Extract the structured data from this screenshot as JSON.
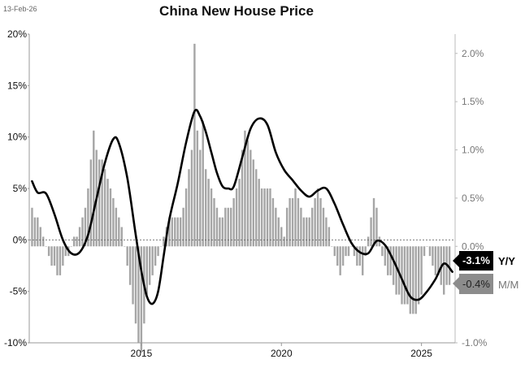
{
  "header": {
    "date": "13-Feb-26",
    "title": "China New House Price"
  },
  "chart_data": {
    "type": "bar",
    "title": "China New House Price",
    "x_range": [
      2011.0,
      2026.2
    ],
    "x_ticks": [
      2015,
      2020,
      2025
    ],
    "y_left": {
      "range": [
        -10,
        20
      ],
      "ticks": [
        -10,
        -5,
        0,
        5,
        10,
        15,
        20
      ],
      "unit": "%"
    },
    "y_right": {
      "range": [
        -1.0,
        2.2
      ],
      "ticks": [
        -1.0,
        0.0,
        0.5,
        1.0,
        1.5,
        2.0
      ],
      "unit": "%"
    },
    "grid": false,
    "series": [
      {
        "name": "Y/Y",
        "type": "line",
        "axis": "left",
        "color": "#000000",
        "points": [
          [
            2011.1,
            5.7
          ],
          [
            2011.3,
            4.6
          ],
          [
            2011.6,
            4.5
          ],
          [
            2011.9,
            2.5
          ],
          [
            2012.2,
            0.0
          ],
          [
            2012.5,
            -1.3
          ],
          [
            2012.8,
            -1.2
          ],
          [
            2013.1,
            0.5
          ],
          [
            2013.4,
            4.0
          ],
          [
            2013.7,
            7.5
          ],
          [
            2014.0,
            9.8
          ],
          [
            2014.2,
            9.4
          ],
          [
            2014.5,
            6.0
          ],
          [
            2014.8,
            0.5
          ],
          [
            2015.0,
            -3.0
          ],
          [
            2015.2,
            -5.5
          ],
          [
            2015.4,
            -6.2
          ],
          [
            2015.6,
            -5.0
          ],
          [
            2015.8,
            -1.5
          ],
          [
            2016.0,
            2.0
          ],
          [
            2016.3,
            5.5
          ],
          [
            2016.6,
            9.5
          ],
          [
            2016.9,
            12.5
          ],
          [
            2017.1,
            12.0
          ],
          [
            2017.3,
            10.5
          ],
          [
            2017.5,
            8.5
          ],
          [
            2017.7,
            6.5
          ],
          [
            2017.9,
            5.2
          ],
          [
            2018.1,
            5.0
          ],
          [
            2018.3,
            5.2
          ],
          [
            2018.6,
            8.0
          ],
          [
            2018.9,
            10.8
          ],
          [
            2019.2,
            11.8
          ],
          [
            2019.5,
            11.2
          ],
          [
            2019.8,
            8.5
          ],
          [
            2020.1,
            6.8
          ],
          [
            2020.4,
            5.8
          ],
          [
            2020.7,
            4.8
          ],
          [
            2021.0,
            4.2
          ],
          [
            2021.3,
            4.8
          ],
          [
            2021.6,
            5.0
          ],
          [
            2021.9,
            3.5
          ],
          [
            2022.2,
            1.5
          ],
          [
            2022.5,
            -0.3
          ],
          [
            2022.8,
            -1.2
          ],
          [
            2023.1,
            -1.3
          ],
          [
            2023.4,
            -0.1
          ],
          [
            2023.7,
            -0.5
          ],
          [
            2024.0,
            -2.0
          ],
          [
            2024.3,
            -3.8
          ],
          [
            2024.6,
            -5.5
          ],
          [
            2024.9,
            -5.8
          ],
          [
            2025.2,
            -5.0
          ],
          [
            2025.5,
            -3.8
          ],
          [
            2025.8,
            -2.3
          ],
          [
            2026.1,
            -3.1
          ]
        ],
        "latest_label": "-3.1%"
      },
      {
        "name": "M/M",
        "type": "bar",
        "axis": "right",
        "color": "#a6a6a6",
        "points": [
          [
            2011.1,
            0.4
          ],
          [
            2011.2,
            0.3
          ],
          [
            2011.3,
            0.3
          ],
          [
            2011.4,
            0.2
          ],
          [
            2011.5,
            0.1
          ],
          [
            2011.6,
            0.0
          ],
          [
            2011.7,
            -0.1
          ],
          [
            2011.8,
            -0.2
          ],
          [
            2011.9,
            -0.2
          ],
          [
            2012.0,
            -0.3
          ],
          [
            2012.1,
            -0.3
          ],
          [
            2012.2,
            -0.2
          ],
          [
            2012.3,
            -0.1
          ],
          [
            2012.4,
            -0.1
          ],
          [
            2012.5,
            0.0
          ],
          [
            2012.6,
            0.1
          ],
          [
            2012.7,
            0.1
          ],
          [
            2012.8,
            0.2
          ],
          [
            2012.9,
            0.3
          ],
          [
            2013.0,
            0.4
          ],
          [
            2013.1,
            0.6
          ],
          [
            2013.2,
            0.9
          ],
          [
            2013.3,
            1.2
          ],
          [
            2013.4,
            1.0
          ],
          [
            2013.5,
            0.9
          ],
          [
            2013.6,
            0.9
          ],
          [
            2013.7,
            0.8
          ],
          [
            2013.8,
            0.7
          ],
          [
            2013.9,
            0.6
          ],
          [
            2014.0,
            0.5
          ],
          [
            2014.1,
            0.4
          ],
          [
            2014.2,
            0.3
          ],
          [
            2014.3,
            0.2
          ],
          [
            2014.4,
            0.0
          ],
          [
            2014.5,
            -0.2
          ],
          [
            2014.6,
            -0.4
          ],
          [
            2014.7,
            -0.6
          ],
          [
            2014.8,
            -0.8
          ],
          [
            2014.9,
            -1.0
          ],
          [
            2015.0,
            -1.1
          ],
          [
            2015.1,
            -0.8
          ],
          [
            2015.2,
            -0.5
          ],
          [
            2015.3,
            -0.4
          ],
          [
            2015.4,
            -0.3
          ],
          [
            2015.5,
            -0.2
          ],
          [
            2015.6,
            -0.1
          ],
          [
            2015.7,
            0.0
          ],
          [
            2015.8,
            0.1
          ],
          [
            2015.9,
            0.2
          ],
          [
            2016.0,
            0.3
          ],
          [
            2016.1,
            0.3
          ],
          [
            2016.2,
            0.3
          ],
          [
            2016.3,
            0.3
          ],
          [
            2016.4,
            0.3
          ],
          [
            2016.5,
            0.4
          ],
          [
            2016.6,
            0.6
          ],
          [
            2016.7,
            0.8
          ],
          [
            2016.8,
            1.0
          ],
          [
            2016.9,
            2.1
          ],
          [
            2017.0,
            1.2
          ],
          [
            2017.1,
            1.0
          ],
          [
            2017.2,
            1.3
          ],
          [
            2017.3,
            0.8
          ],
          [
            2017.4,
            0.7
          ],
          [
            2017.5,
            0.6
          ],
          [
            2017.6,
            0.5
          ],
          [
            2017.7,
            0.4
          ],
          [
            2017.8,
            0.3
          ],
          [
            2017.9,
            0.3
          ],
          [
            2018.0,
            0.4
          ],
          [
            2018.1,
            0.4
          ],
          [
            2018.2,
            0.4
          ],
          [
            2018.3,
            0.5
          ],
          [
            2018.4,
            0.6
          ],
          [
            2018.5,
            0.7
          ],
          [
            2018.6,
            1.0
          ],
          [
            2018.7,
            1.2
          ],
          [
            2018.8,
            1.1
          ],
          [
            2018.9,
            1.0
          ],
          [
            2019.0,
            0.9
          ],
          [
            2019.1,
            0.8
          ],
          [
            2019.2,
            0.7
          ],
          [
            2019.3,
            0.6
          ],
          [
            2019.4,
            0.6
          ],
          [
            2019.5,
            0.6
          ],
          [
            2019.6,
            0.6
          ],
          [
            2019.7,
            0.5
          ],
          [
            2019.8,
            0.4
          ],
          [
            2019.9,
            0.3
          ],
          [
            2020.0,
            0.2
          ],
          [
            2020.1,
            0.1
          ],
          [
            2020.2,
            0.4
          ],
          [
            2020.3,
            0.5
          ],
          [
            2020.4,
            0.5
          ],
          [
            2020.5,
            0.6
          ],
          [
            2020.6,
            0.5
          ],
          [
            2020.7,
            0.4
          ],
          [
            2020.8,
            0.3
          ],
          [
            2020.9,
            0.3
          ],
          [
            2021.0,
            0.3
          ],
          [
            2021.1,
            0.4
          ],
          [
            2021.2,
            0.5
          ],
          [
            2021.3,
            0.6
          ],
          [
            2021.4,
            0.5
          ],
          [
            2021.5,
            0.4
          ],
          [
            2021.6,
            0.3
          ],
          [
            2021.7,
            0.2
          ],
          [
            2021.8,
            0.0
          ],
          [
            2021.9,
            -0.1
          ],
          [
            2022.0,
            -0.2
          ],
          [
            2022.1,
            -0.3
          ],
          [
            2022.2,
            -0.2
          ],
          [
            2022.3,
            -0.1
          ],
          [
            2022.4,
            -0.1
          ],
          [
            2022.5,
            0.0
          ],
          [
            2022.6,
            -0.1
          ],
          [
            2022.7,
            -0.2
          ],
          [
            2022.8,
            -0.2
          ],
          [
            2022.9,
            -0.3
          ],
          [
            2023.0,
            -0.1
          ],
          [
            2023.1,
            0.1
          ],
          [
            2023.2,
            0.3
          ],
          [
            2023.3,
            0.5
          ],
          [
            2023.4,
            0.4
          ],
          [
            2023.5,
            0.1
          ],
          [
            2023.6,
            -0.1
          ],
          [
            2023.7,
            -0.2
          ],
          [
            2023.8,
            -0.3
          ],
          [
            2023.9,
            -0.3
          ],
          [
            2024.0,
            -0.4
          ],
          [
            2024.1,
            -0.5
          ],
          [
            2024.2,
            -0.5
          ],
          [
            2024.3,
            -0.6
          ],
          [
            2024.4,
            -0.6
          ],
          [
            2024.5,
            -0.6
          ],
          [
            2024.6,
            -0.7
          ],
          [
            2024.7,
            -0.7
          ],
          [
            2024.8,
            -0.7
          ],
          [
            2024.9,
            -0.6
          ],
          [
            2025.0,
            -0.5
          ],
          [
            2025.1,
            -0.1
          ],
          [
            2025.2,
            0.0
          ],
          [
            2025.3,
            -0.1
          ],
          [
            2025.4,
            -0.2
          ],
          [
            2025.5,
            -0.3
          ],
          [
            2025.6,
            -0.3
          ],
          [
            2025.7,
            -0.4
          ],
          [
            2025.8,
            -0.5
          ],
          [
            2025.9,
            -0.4
          ],
          [
            2026.0,
            -0.4
          ]
        ],
        "latest_label": "-0.4%"
      }
    ],
    "legend": [
      {
        "name": "Y/Y",
        "value": "-3.1%",
        "color": "#000000"
      },
      {
        "name": "M/M",
        "value": "-0.4%",
        "color": "#8c8c8c"
      }
    ]
  }
}
